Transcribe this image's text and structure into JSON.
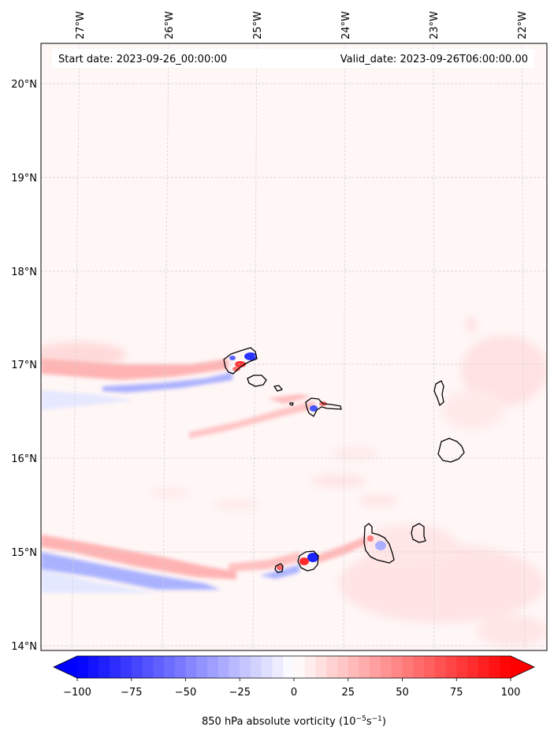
{
  "map": {
    "start_label": "Start date: 2023-09-26_00:00:00",
    "valid_label": "Valid_date: 2023-09-26T06:00:00.00",
    "lon_labels": [
      "27°W",
      "26°W",
      "25°W",
      "24°W",
      "23°W",
      "22°W"
    ],
    "lat_labels": [
      "20°N",
      "19°N",
      "18°N",
      "17°N",
      "16°N",
      "15°N",
      "14°N"
    ],
    "lon_range": [
      -27.3,
      -21.7
    ],
    "lat_range": [
      13.95,
      20.4
    ],
    "gridlines": true
  },
  "colorbar": {
    "ticks": [
      "−100",
      "−75",
      "−50",
      "−25",
      "0",
      "25",
      "50",
      "75",
      "100"
    ],
    "values": [
      -100,
      -75,
      -50,
      -25,
      0,
      25,
      50,
      75,
      100
    ],
    "range": [
      -100,
      100
    ],
    "label_prefix": "850 hPa absolute vorticity (10",
    "label_exp1": "−5",
    "label_mid": "s",
    "label_exp2": "−1",
    "label_suffix": ")",
    "colormap": "bwr",
    "extend": "both"
  },
  "colors": {
    "negative": "#0000ff",
    "neutral": "#ffffff",
    "positive": "#ff0000",
    "background_field": "#fff6f6",
    "coastline": "#000000"
  }
}
